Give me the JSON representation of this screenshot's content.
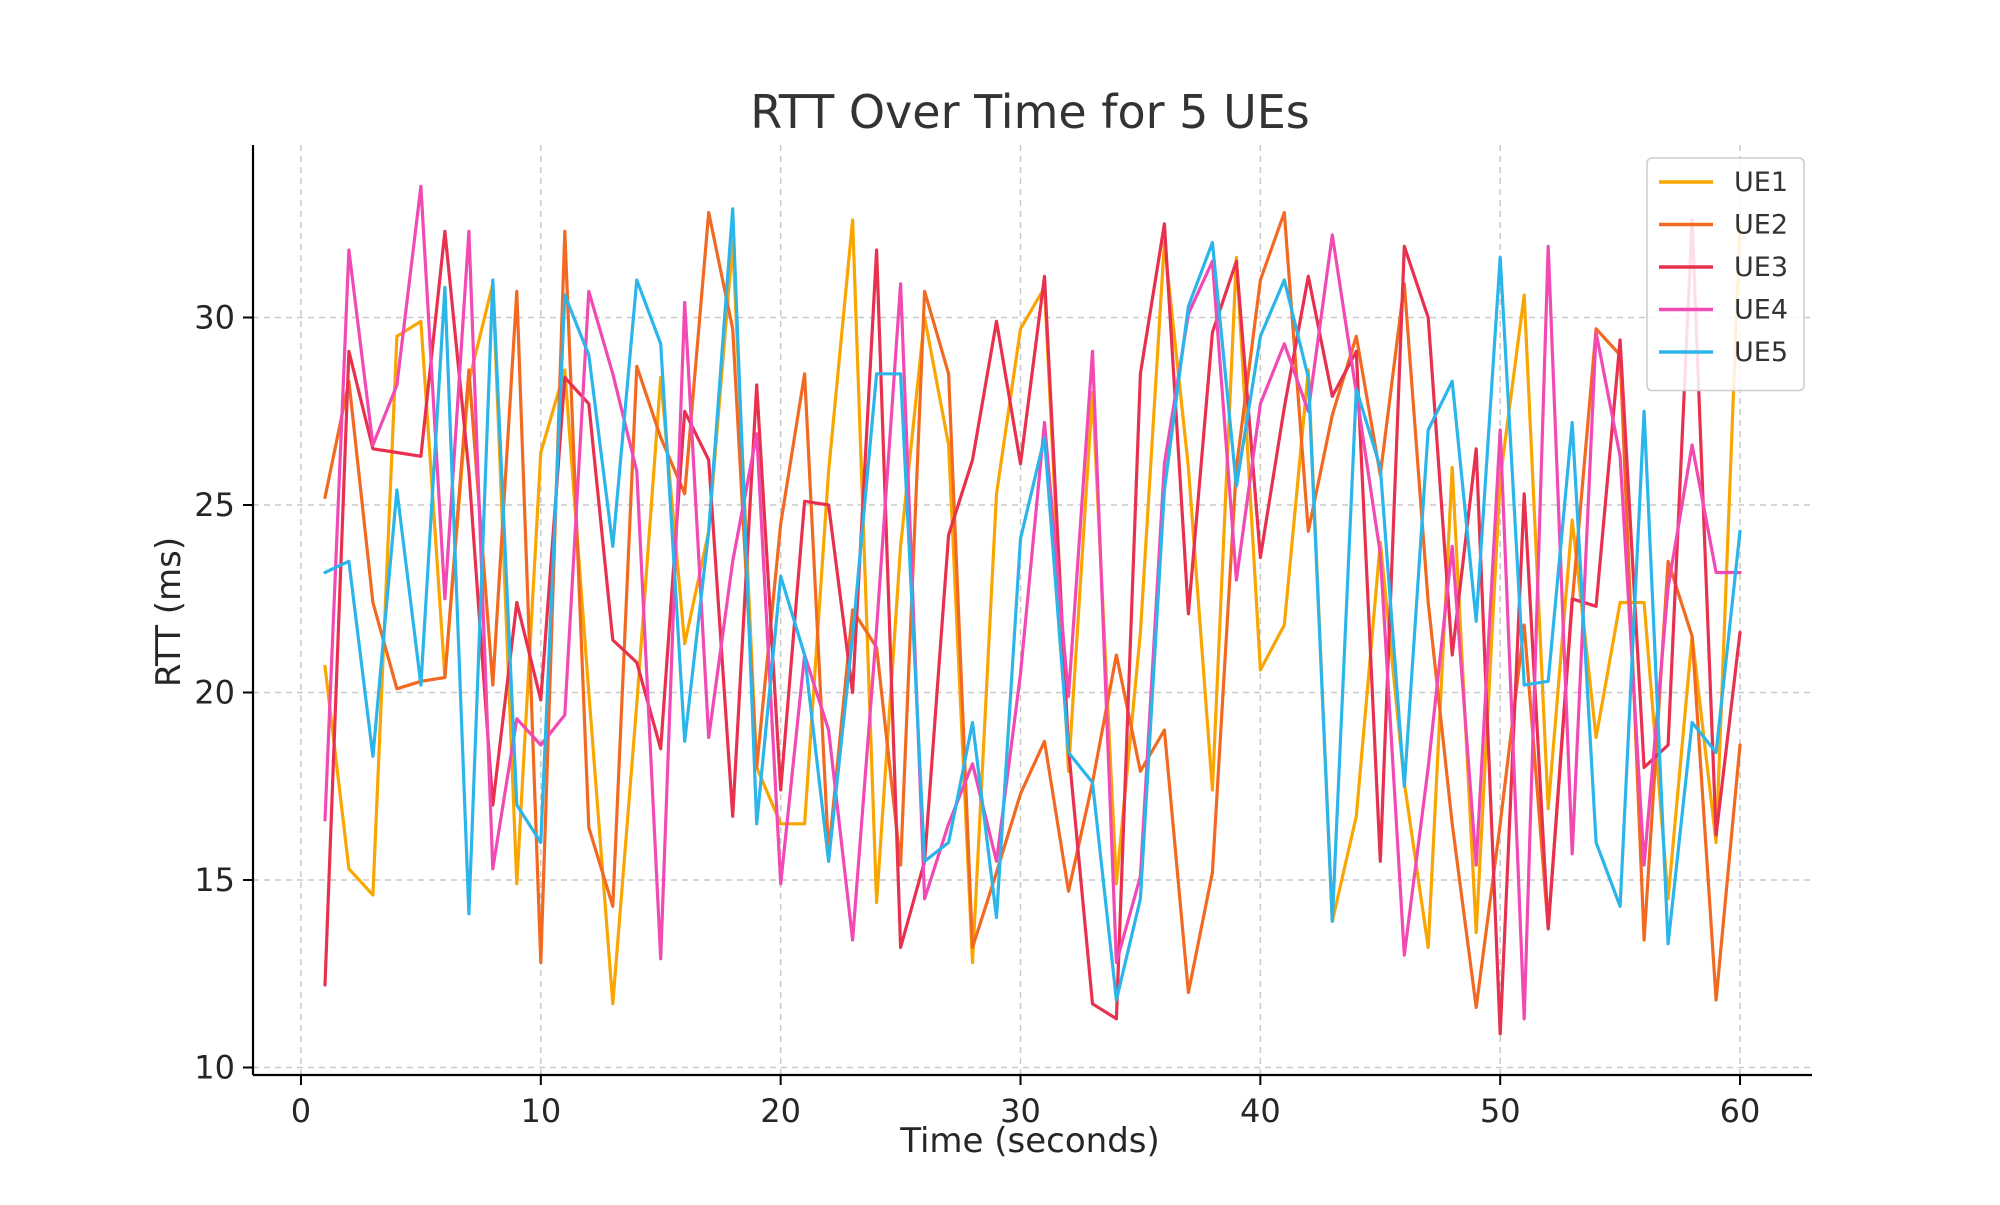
{
  "chart_data": {
    "type": "line",
    "title": "RTT Over Time for 5 UEs",
    "xlabel": "Time (seconds)",
    "ylabel": "RTT (ms)",
    "xlim": [
      -2,
      63
    ],
    "ylim": [
      9.8,
      34.6
    ],
    "xticks": [
      0,
      10,
      20,
      30,
      40,
      50,
      60
    ],
    "yticks": [
      10,
      15,
      20,
      25,
      30
    ],
    "grid": true,
    "legend_position": "top-right",
    "x": [
      1,
      2,
      3,
      4,
      5,
      6,
      7,
      8,
      9,
      10,
      11,
      12,
      13,
      14,
      15,
      16,
      17,
      18,
      19,
      20,
      21,
      22,
      23,
      24,
      25,
      26,
      27,
      28,
      29,
      30,
      31,
      32,
      33,
      34,
      35,
      36,
      37,
      38,
      39,
      40,
      41,
      42,
      43,
      44,
      45,
      46,
      47,
      48,
      49,
      50,
      51,
      52,
      53,
      54,
      55,
      56,
      57,
      58,
      59,
      60
    ],
    "series": [
      {
        "name": "UE1",
        "color": "#f9a602",
        "values": [
          20.7,
          15.3,
          14.6,
          29.5,
          29.9,
          20.4,
          28.3,
          30.9,
          14.9,
          26.4,
          28.6,
          20.0,
          11.7,
          19.7,
          28.4,
          21.3,
          24.3,
          32.0,
          18.0,
          16.5,
          16.5,
          25.9,
          32.6,
          14.4,
          23.9,
          30.0,
          26.6,
          12.8,
          25.3,
          29.7,
          30.8,
          17.9,
          28.0,
          14.9,
          21.6,
          32.0,
          26.0,
          17.4,
          31.6,
          20.6,
          21.8,
          28.6,
          13.9,
          16.7,
          24.0,
          17.6,
          13.2,
          26.0,
          13.6,
          25.7,
          30.6,
          16.9,
          24.6,
          18.8,
          22.4,
          22.4,
          14.5,
          21.5,
          16.0,
          32.5
        ]
      },
      {
        "name": "UE2",
        "color": "#f26a21",
        "values": [
          25.2,
          28.3,
          22.4,
          20.1,
          20.3,
          20.4,
          28.6,
          20.2,
          30.7,
          12.8,
          32.3,
          16.4,
          14.3,
          28.7,
          26.8,
          25.3,
          32.8,
          29.7,
          18.0,
          24.5,
          28.5,
          15.7,
          22.2,
          21.2,
          15.4,
          30.7,
          28.5,
          13.2,
          15.2,
          17.3,
          18.7,
          14.7,
          17.6,
          21.0,
          17.9,
          19.0,
          12.0,
          15.2,
          26.0,
          31.0,
          32.8,
          24.3,
          27.4,
          29.5,
          25.8,
          30.9,
          22.4,
          16.5,
          11.6,
          16.5,
          21.8,
          13.7,
          22.4,
          29.7,
          29.0,
          13.4,
          23.5,
          21.5,
          11.8,
          18.6
        ]
      },
      {
        "name": "UE3",
        "color": "#e8304f",
        "values": [
          12.2,
          29.1,
          26.5,
          26.4,
          26.3,
          32.3,
          25.9,
          17.0,
          22.4,
          19.8,
          28.4,
          27.7,
          21.4,
          20.8,
          18.5,
          27.5,
          26.2,
          16.7,
          28.2,
          17.4,
          25.1,
          25.0,
          20.0,
          31.8,
          13.2,
          15.5,
          24.2,
          26.2,
          29.9,
          26.1,
          31.1,
          18.5,
          11.7,
          11.3,
          28.5,
          32.5,
          22.1,
          29.6,
          31.5,
          23.6,
          27.6,
          31.1,
          27.9,
          29.1,
          15.5,
          31.9,
          30.0,
          21.0,
          26.5,
          10.9,
          25.3,
          13.7,
          22.5,
          22.3,
          29.4,
          18.0,
          18.6,
          32.6,
          16.2,
          21.6
        ]
      },
      {
        "name": "UE4",
        "color": "#f24ab4",
        "values": [
          16.6,
          31.8,
          26.6,
          28.2,
          33.5,
          22.5,
          32.3,
          15.3,
          19.3,
          18.6,
          19.4,
          30.7,
          28.5,
          25.9,
          12.9,
          30.4,
          18.8,
          23.5,
          26.9,
          14.9,
          21.0,
          19.0,
          13.4,
          21.7,
          30.9,
          14.5,
          16.5,
          18.1,
          15.5,
          20.5,
          27.2,
          19.9,
          29.1,
          12.8,
          15.1,
          26.1,
          30.1,
          31.5,
          23.0,
          27.7,
          29.3,
          27.5,
          32.2,
          28.0,
          23.7,
          13.0,
          18.0,
          23.9,
          15.4,
          27.0,
          11.3,
          31.9,
          15.7,
          29.6,
          26.3,
          15.4,
          22.8,
          26.6,
          23.2,
          23.2
        ]
      },
      {
        "name": "UE5",
        "color": "#2bb5ea",
        "values": [
          23.2,
          23.5,
          18.3,
          25.4,
          20.2,
          30.8,
          14.1,
          31.0,
          17.0,
          16.0,
          30.6,
          29.0,
          23.9,
          31.0,
          29.3,
          18.7,
          24.3,
          32.9,
          16.5,
          23.1,
          21.0,
          15.5,
          21.5,
          28.5,
          28.5,
          15.5,
          16.0,
          19.2,
          14.0,
          24.1,
          26.8,
          18.4,
          17.6,
          11.8,
          14.5,
          25.4,
          30.3,
          32.0,
          25.5,
          29.5,
          31.0,
          28.4,
          13.9,
          28.1,
          26.0,
          17.5,
          27.0,
          28.3,
          21.9,
          31.6,
          20.2,
          20.3,
          27.2,
          16.0,
          14.3,
          27.5,
          13.3,
          19.2,
          18.4,
          24.3
        ]
      }
    ]
  }
}
